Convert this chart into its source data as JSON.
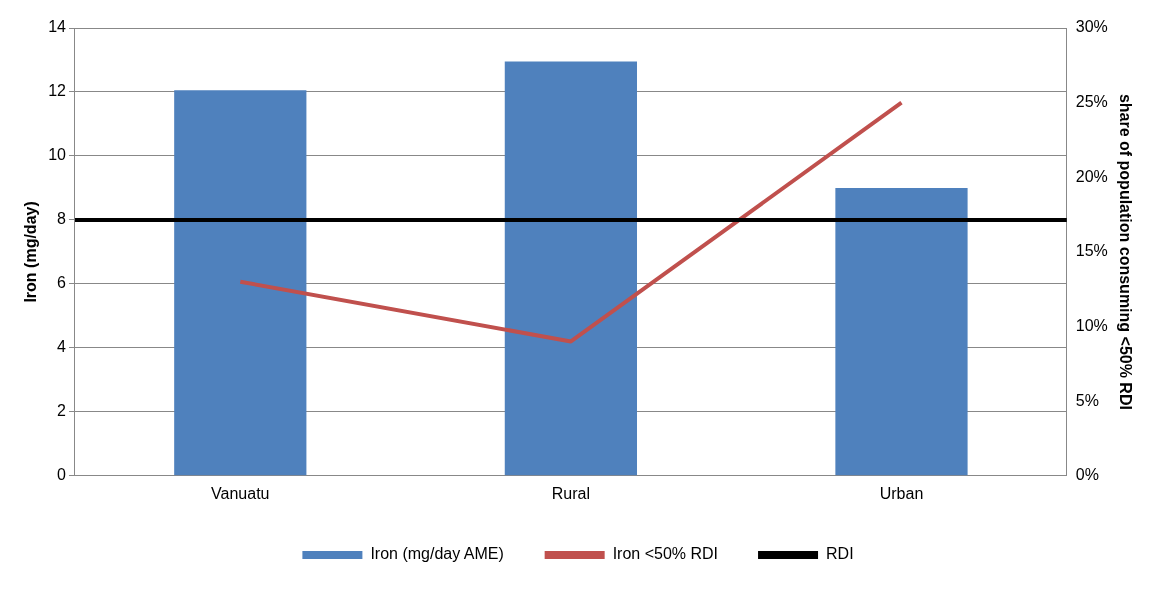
{
  "chart_data": {
    "type": "bar",
    "categories": [
      "Vanuatu",
      "Rural",
      "Urban"
    ],
    "series": [
      {
        "name": "Iron (mg/day AME)",
        "color": "#4f81bd",
        "values": [
          12.05,
          12.95,
          9.0
        ]
      },
      {
        "name": "Iron <50% RDI",
        "type": "line",
        "axis": "y2",
        "color": "#c0504d",
        "values": [
          13,
          9,
          25
        ]
      }
    ],
    "ylabel": "Iron (mg/day)",
    "y2label": "share of population consuming <50% RDI",
    "ylim": [
      0,
      14
    ],
    "yticks": [
      0,
      2,
      4,
      6,
      8,
      10,
      12,
      14
    ],
    "y2lim": [
      0,
      30
    ],
    "y2ticks": [
      {
        "value": 0,
        "label": "0%"
      },
      {
        "value": 5,
        "label": "5%"
      },
      {
        "value": 10,
        "label": "10%"
      },
      {
        "value": 15,
        "label": "15%"
      },
      {
        "value": 20,
        "label": "20%"
      },
      {
        "value": 25,
        "label": "25%"
      },
      {
        "value": 30,
        "label": "30%"
      }
    ],
    "ref_lines": [
      {
        "axis": "y",
        "value": 8,
        "label": "RDI",
        "color": "#000000"
      }
    ],
    "grid": "y",
    "legend": "bottom",
    "marker": "none"
  }
}
